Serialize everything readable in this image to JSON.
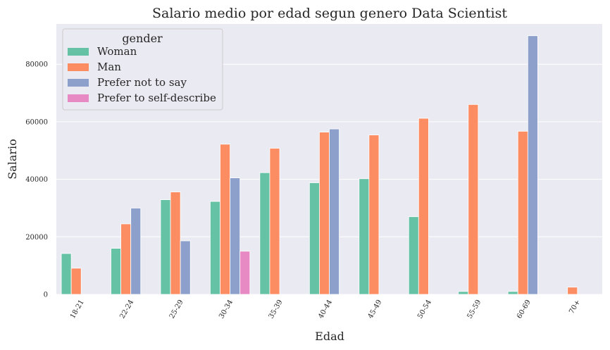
{
  "chart_data": {
    "type": "bar",
    "title": "Salario medio por edad segun genero Data Scientist",
    "xlabel": "Edad",
    "ylabel": "Salario",
    "ylim": [
      0,
      94000
    ],
    "yticks": [
      0,
      20000,
      40000,
      60000,
      80000
    ],
    "grid": true,
    "legend": {
      "title": "gender",
      "placement": "top-left"
    },
    "categories": [
      "18-21",
      "22-24",
      "25-29",
      "30-34",
      "35-39",
      "40-44",
      "45-49",
      "50-54",
      "55-59",
      "60-69",
      "70+"
    ],
    "series": [
      {
        "name": "Woman",
        "color": "#66c2a5",
        "values": [
          14200,
          16000,
          32900,
          32300,
          42300,
          38800,
          40200,
          27000,
          1000,
          1000,
          null
        ]
      },
      {
        "name": "Man",
        "color": "#fc8d62",
        "values": [
          9100,
          24500,
          35600,
          52200,
          50800,
          56400,
          55400,
          61200,
          66000,
          56700,
          2500
        ]
      },
      {
        "name": "Prefer not to say",
        "color": "#8da0cb",
        "values": [
          null,
          30000,
          18600,
          40500,
          null,
          57500,
          null,
          null,
          null,
          89900,
          null
        ]
      },
      {
        "name": "Prefer to self-describe",
        "color": "#e78ac3",
        "values": [
          null,
          null,
          null,
          15000,
          null,
          null,
          null,
          null,
          null,
          null,
          null
        ]
      }
    ]
  }
}
